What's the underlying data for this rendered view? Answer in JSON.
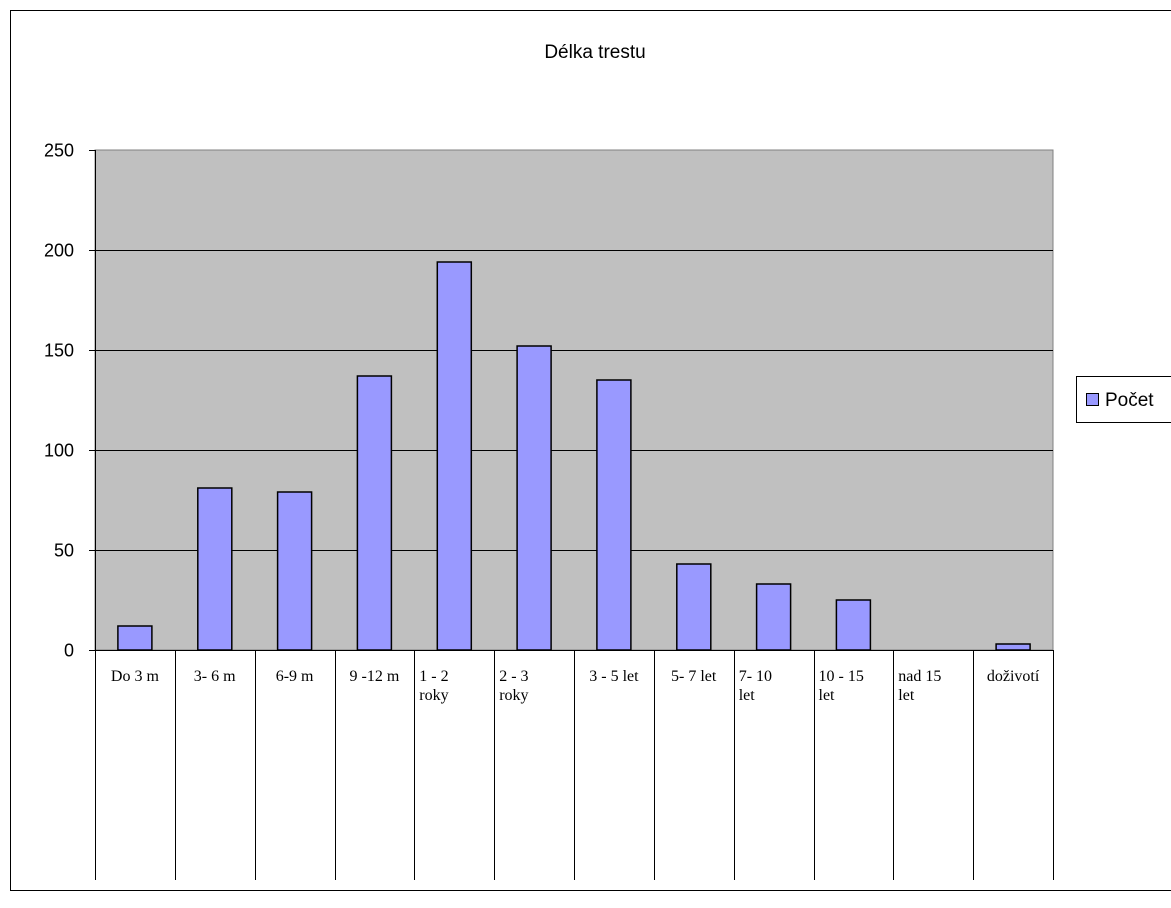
{
  "chart_data": {
    "type": "bar",
    "title": "Délka trestu",
    "categories": [
      [
        "Do 3 m"
      ],
      [
        "3- 6 m"
      ],
      [
        "6-9 m"
      ],
      [
        "9 -12 m"
      ],
      [
        "1 - 2",
        "roky"
      ],
      [
        "2 - 3",
        "roky"
      ],
      [
        "3 - 5 let"
      ],
      [
        "5- 7 let"
      ],
      [
        "7- 10",
        "let"
      ],
      [
        "10 - 15",
        "let"
      ],
      [
        "nad 15",
        "let"
      ],
      [
        "doživotí"
      ]
    ],
    "series": [
      {
        "name": "Počet",
        "values": [
          12,
          81,
          79,
          137,
          194,
          152,
          135,
          43,
          33,
          25,
          0,
          3
        ]
      }
    ],
    "ylim": [
      0,
      250
    ],
    "yticks": [
      "0",
      "50",
      "100",
      "150",
      "200",
      "250"
    ],
    "grid": true,
    "legend_position": "right",
    "colors": {
      "bar_fill": "#9999ff",
      "bar_stroke": "#000000",
      "plot_bg": "#c0c0c0",
      "gridline": "#000000"
    }
  }
}
